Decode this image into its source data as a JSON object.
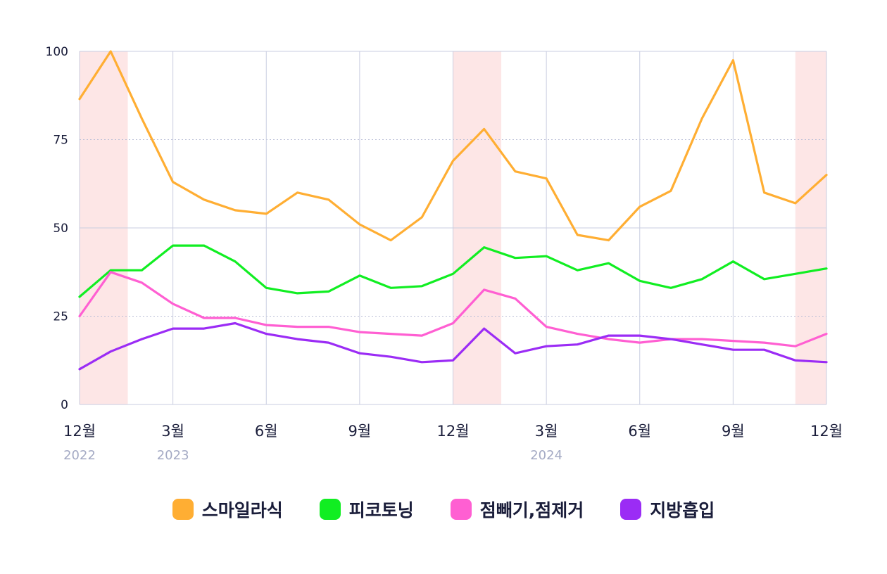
{
  "chart_data": {
    "type": "line",
    "y_ticks": [
      "0",
      "25",
      "50",
      "75",
      "100"
    ],
    "ylim": [
      0,
      100
    ],
    "x_labels": [
      {
        "index": 0,
        "month": "12월",
        "year": "2022"
      },
      {
        "index": 3,
        "month": "3월",
        "year": "2023"
      },
      {
        "index": 6,
        "month": "6월",
        "year": ""
      },
      {
        "index": 9,
        "month": "9월",
        "year": ""
      },
      {
        "index": 12,
        "month": "12월",
        "year": ""
      },
      {
        "index": 15,
        "month": "3월",
        "year": "2024"
      },
      {
        "index": 18,
        "month": "6월",
        "year": ""
      },
      {
        "index": 21,
        "month": "9월",
        "year": ""
      },
      {
        "index": 24,
        "month": "12월",
        "year": ""
      }
    ],
    "x_months": [
      "2022-12",
      "2023-01",
      "2023-02",
      "2023-03",
      "2023-04",
      "2023-05",
      "2023-06",
      "2023-07",
      "2023-08",
      "2023-09",
      "2023-10",
      "2023-11",
      "2023-12",
      "2024-01",
      "2024-02",
      "2024-03",
      "2024-04",
      "2024-05",
      "2024-06",
      "2024-07",
      "2024-08",
      "2024-09",
      "2024-10",
      "2024-11",
      "2024-12"
    ],
    "highlight_months": [
      [
        "2022-12",
        "2023-01"
      ],
      [
        "2023-12",
        "2024-01"
      ],
      [
        "2024-11",
        "2024-12"
      ]
    ],
    "series": [
      {
        "name": "스마일라식",
        "color": "#ffae33",
        "values": [
          86.5,
          100,
          81,
          63,
          58,
          55,
          54,
          60,
          58,
          51,
          46.5,
          53,
          69,
          78,
          66,
          64,
          48,
          46.5,
          56,
          60.5,
          81,
          97.5,
          60,
          57,
          65
        ]
      },
      {
        "name": "피코토닝",
        "color": "#11ee22",
        "values": [
          30.5,
          38,
          38,
          45,
          45,
          40.5,
          33,
          31.5,
          32,
          36.5,
          33,
          33.5,
          37,
          44.5,
          41.5,
          42,
          38,
          40,
          35,
          33,
          35.5,
          40.5,
          35.5,
          37,
          38.5
        ]
      },
      {
        "name": "점빼기,점제거",
        "color": "#ff5fd2",
        "values": [
          25,
          37.5,
          34.5,
          28.5,
          24.5,
          24.5,
          22.5,
          22,
          22,
          20.5,
          20,
          19.5,
          23,
          32.5,
          30,
          22,
          20,
          18.5,
          17.5,
          18.5,
          18.5,
          18,
          17.5,
          16.5,
          20
        ]
      },
      {
        "name": "지방흡입",
        "color": "#9b2cf5",
        "values": [
          10,
          15,
          18.5,
          21.5,
          21.5,
          23,
          20,
          18.5,
          17.5,
          14.5,
          13.5,
          12,
          12.5,
          21.5,
          14.5,
          16.5,
          17,
          19.5,
          19.5,
          18.5,
          17,
          15.5,
          15.5,
          12.5,
          12
        ]
      }
    ],
    "grid": true,
    "legend_position": "bottom"
  }
}
